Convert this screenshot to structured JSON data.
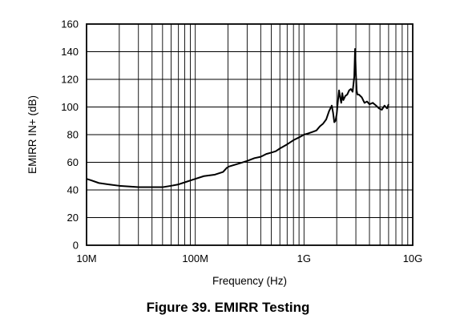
{
  "caption": "Figure 39.  EMIRR Testing",
  "chart_data": {
    "type": "line",
    "title": "",
    "xlabel": "Frequency (Hz)",
    "ylabel": "EMIRR IN+ (dB)",
    "x_scale": "log",
    "xlim": [
      10000000,
      10000000000
    ],
    "ylim": [
      0,
      160
    ],
    "grid": true,
    "x_ticks": [
      {
        "value": 10000000,
        "label": "10M"
      },
      {
        "value": 100000000,
        "label": "100M"
      },
      {
        "value": 1000000000,
        "label": "1G"
      },
      {
        "value": 10000000000,
        "label": "10G"
      }
    ],
    "y_ticks": [
      0,
      20,
      40,
      60,
      80,
      100,
      120,
      140,
      160
    ],
    "series": [
      {
        "color": "#000000",
        "x": [
          10000000,
          11000000,
          13000000,
          16000000,
          20000000,
          25000000,
          30000000,
          40000000,
          50000000,
          60000000,
          70000000,
          80000000,
          100000000,
          120000000,
          150000000,
          180000000,
          195000000,
          205000000,
          250000000,
          300000000,
          350000000,
          400000000,
          450000000,
          500000000,
          550000000,
          600000000,
          700000000,
          800000000,
          900000000,
          1000000000,
          1100000000,
          1200000000,
          1300000000,
          1400000000,
          1500000000,
          1600000000,
          1700000000,
          1800000000,
          1850000000,
          1900000000,
          1950000000,
          2000000000,
          2050000000,
          2100000000,
          2150000000,
          2200000000,
          2250000000,
          2300000000,
          2400000000,
          2500000000,
          2600000000,
          2700000000,
          2800000000,
          2900000000,
          2950000000,
          3000000000,
          3050000000,
          3100000000,
          3200000000,
          3400000000,
          3600000000,
          3800000000,
          4000000000,
          4300000000,
          4600000000,
          4900000000,
          5200000000,
          5500000000,
          5800000000,
          6000000000
        ],
        "y": [
          48,
          47,
          45,
          44,
          43,
          42.5,
          42,
          42,
          42,
          43,
          44,
          45.5,
          48,
          50,
          51,
          53,
          56,
          57,
          59,
          61,
          63,
          64,
          66,
          67,
          68,
          70,
          73,
          76,
          78,
          80,
          81,
          82,
          83,
          86,
          88,
          91,
          97,
          101,
          96,
          89,
          90,
          95,
          104,
          112,
          107,
          103,
          110,
          105,
          108,
          109,
          112,
          113,
          111,
          122,
          142,
          125,
          112,
          109,
          109,
          107,
          103,
          104,
          102,
          103,
          101,
          99,
          98,
          101,
          99,
          102
        ]
      }
    ]
  }
}
